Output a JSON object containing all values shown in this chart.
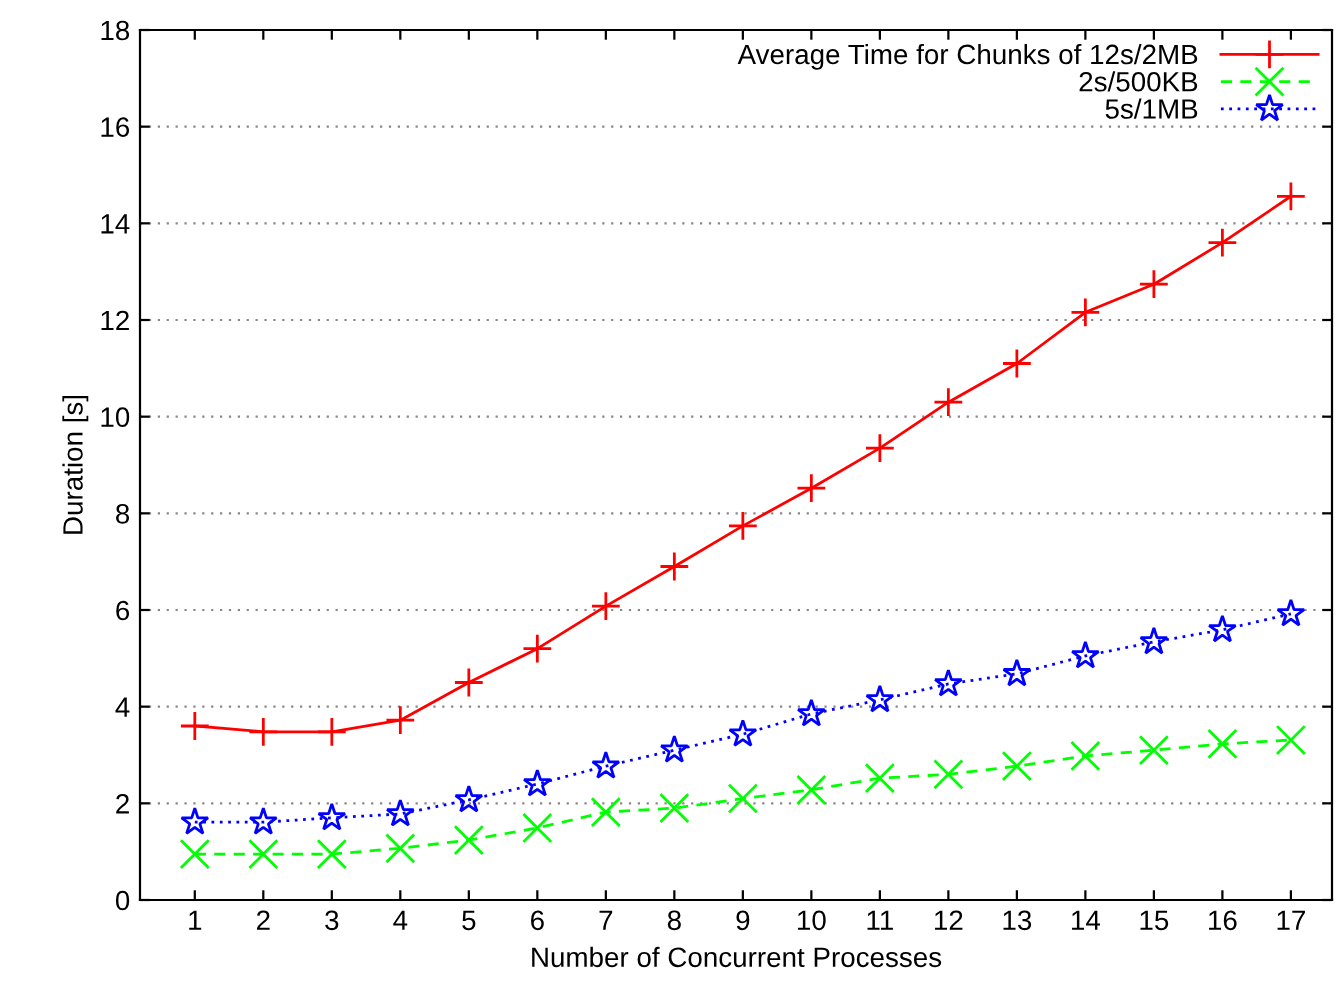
{
  "chart_data": {
    "type": "line",
    "xlabel": "Number of Concurrent Processes",
    "ylabel": "Duration [s]",
    "x": [
      1,
      2,
      3,
      4,
      5,
      6,
      7,
      8,
      9,
      10,
      11,
      12,
      13,
      14,
      15,
      16,
      17
    ],
    "xlim": [
      0.2,
      17.6
    ],
    "xticks": [
      1,
      2,
      3,
      4,
      5,
      6,
      7,
      8,
      9,
      10,
      11,
      12,
      13,
      14,
      15,
      16,
      17
    ],
    "ylim": [
      0,
      18
    ],
    "yticks": [
      0,
      2,
      4,
      6,
      8,
      10,
      12,
      14,
      16,
      18
    ],
    "grid": "y",
    "legend": "top right",
    "series": [
      {
        "name": "Average Time for Chunks of 12s/2MB",
        "color": "#ff0000",
        "marker": "plus",
        "line_style": "solid",
        "values": [
          3.6,
          3.48,
          3.48,
          3.72,
          4.5,
          5.2,
          6.08,
          6.9,
          7.74,
          8.52,
          9.35,
          10.3,
          11.1,
          12.16,
          12.74,
          13.6,
          14.56
        ]
      },
      {
        "name": "2s/500KB",
        "color": "#00ff00",
        "marker": "cross",
        "line_style": "dashed",
        "values": [
          0.95,
          0.95,
          0.95,
          1.07,
          1.24,
          1.49,
          1.82,
          1.9,
          2.1,
          2.28,
          2.52,
          2.6,
          2.77,
          2.98,
          3.1,
          3.23,
          3.31
        ]
      },
      {
        "name": "5s/1MB",
        "color": "#0000ff",
        "marker": "star",
        "line_style": "dotted",
        "values": [
          1.61,
          1.61,
          1.7,
          1.78,
          2.07,
          2.4,
          2.77,
          3.1,
          3.43,
          3.85,
          4.14,
          4.47,
          4.68,
          5.05,
          5.34,
          5.59,
          5.92
        ]
      }
    ]
  }
}
